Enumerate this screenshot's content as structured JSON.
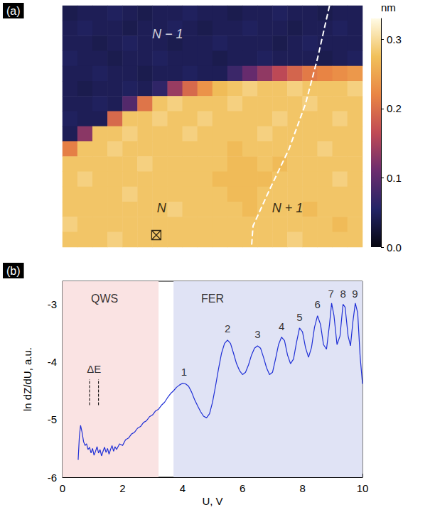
{
  "chart_data": [
    {
      "type": "heatmap",
      "panel_label": "(a)",
      "tick_labels": false,
      "cells": [
        [
          0.04,
          0.045,
          0.045,
          0.05,
          0.045,
          0.04,
          0.045,
          0.045,
          0.05,
          0.045,
          0.045,
          0.04,
          0.045,
          0.045,
          0.05,
          0.045,
          0.045,
          0.04,
          0.045,
          0.045
        ],
        [
          0.045,
          0.05,
          0.045,
          0.045,
          0.04,
          0.045,
          0.045,
          0.05,
          0.045,
          0.04,
          0.045,
          0.045,
          0.05,
          0.045,
          0.045,
          0.04,
          0.045,
          0.045,
          0.05,
          0.045
        ],
        [
          0.045,
          0.045,
          0.04,
          0.045,
          0.05,
          0.045,
          0.045,
          0.04,
          0.045,
          0.045,
          0.05,
          0.045,
          0.045,
          0.045,
          0.04,
          0.045,
          0.05,
          0.045,
          0.045,
          0.045
        ],
        [
          0.05,
          0.045,
          0.045,
          0.04,
          0.045,
          0.045,
          0.05,
          0.045,
          0.045,
          0.045,
          0.04,
          0.045,
          0.045,
          0.05,
          0.045,
          0.045,
          0.045,
          0.04,
          0.045,
          0.05
        ],
        [
          0.045,
          0.045,
          0.05,
          0.045,
          0.045,
          0.04,
          0.045,
          0.045,
          0.05,
          0.045,
          0.045,
          0.073,
          0.106,
          0.134,
          0.163,
          0.19,
          0.21,
          0.219,
          0.228,
          0.238
        ],
        [
          0.045,
          0.04,
          0.045,
          0.045,
          0.05,
          0.045,
          0.064,
          0.139,
          0.195,
          0.233,
          0.271,
          0.28,
          0.29,
          0.28,
          0.28,
          0.29,
          0.28,
          0.28,
          0.28,
          0.29
        ],
        [
          0.045,
          0.045,
          0.05,
          0.045,
          0.092,
          0.205,
          0.28,
          0.29,
          0.28,
          0.28,
          0.28,
          0.29,
          0.28,
          0.28,
          0.28,
          0.28,
          0.29,
          0.28,
          0.28,
          0.28
        ],
        [
          0.05,
          0.045,
          0.045,
          0.195,
          0.28,
          0.28,
          0.29,
          0.28,
          0.28,
          0.29,
          0.28,
          0.28,
          0.28,
          0.28,
          0.29,
          0.28,
          0.28,
          0.28,
          0.29,
          0.28
        ],
        [
          0.045,
          0.13,
          0.28,
          0.28,
          0.29,
          0.28,
          0.28,
          0.28,
          0.29,
          0.28,
          0.28,
          0.28,
          0.28,
          0.29,
          0.28,
          0.28,
          0.28,
          0.28,
          0.28,
          0.28
        ],
        [
          0.214,
          0.28,
          0.28,
          0.29,
          0.28,
          0.28,
          0.28,
          0.28,
          0.28,
          0.28,
          0.28,
          0.27,
          0.28,
          0.28,
          0.28,
          0.28,
          0.28,
          0.29,
          0.28,
          0.28
        ],
        [
          0.28,
          0.28,
          0.28,
          0.28,
          0.28,
          0.29,
          0.28,
          0.28,
          0.28,
          0.28,
          0.28,
          0.27,
          0.27,
          0.28,
          0.27,
          0.28,
          0.28,
          0.28,
          0.28,
          0.28
        ],
        [
          0.28,
          0.29,
          0.28,
          0.28,
          0.28,
          0.28,
          0.28,
          0.28,
          0.28,
          0.28,
          0.27,
          0.27,
          0.27,
          0.27,
          0.28,
          0.28,
          0.28,
          0.28,
          0.29,
          0.28
        ],
        [
          0.28,
          0.28,
          0.28,
          0.28,
          0.29,
          0.28,
          0.28,
          0.28,
          0.28,
          0.28,
          0.28,
          0.27,
          0.27,
          0.28,
          0.28,
          0.28,
          0.28,
          0.28,
          0.28,
          0.28
        ],
        [
          0.28,
          0.28,
          0.28,
          0.28,
          0.28,
          0.28,
          0.28,
          0.29,
          0.28,
          0.28,
          0.28,
          0.28,
          0.27,
          0.28,
          0.28,
          0.28,
          0.27,
          0.28,
          0.28,
          0.28
        ],
        [
          0.29,
          0.28,
          0.28,
          0.28,
          0.28,
          0.28,
          0.28,
          0.28,
          0.28,
          0.28,
          0.28,
          0.28,
          0.28,
          0.28,
          0.28,
          0.28,
          0.28,
          0.28,
          0.27,
          0.28
        ],
        [
          0.28,
          0.28,
          0.28,
          0.29,
          0.28,
          0.28,
          0.28,
          0.28,
          0.28,
          0.28,
          0.28,
          0.28,
          0.28,
          0.28,
          0.28,
          0.29,
          0.28,
          0.28,
          0.28,
          0.28
        ]
      ],
      "colorbar": {
        "range": [
          0,
          0.33
        ],
        "ticks": [
          {
            "value": 0,
            "label": "0.0"
          },
          0.1,
          0.2,
          0.3
        ],
        "label": "nm"
      },
      "annotations": [
        {
          "text": "N − 1",
          "x": 7.0,
          "y": 1.9,
          "color": "#ffffff"
        },
        {
          "text": "N",
          "x": 6.6,
          "y": 13.4,
          "color": "#000000"
        },
        {
          "text": "N + 1",
          "x": 15.0,
          "y": 13.4,
          "color": "#000000"
        }
      ],
      "tip_position": [
        6.25,
        15.2
      ],
      "dashed_line": {
        "x": [
          17.8,
          17.0,
          16.2,
          15.1,
          13.8,
          12.7,
          12.6
        ],
        "y": [
          0,
          3.5,
          6.5,
          9.5,
          12.2,
          14.6,
          16
        ],
        "color": "#ffffff"
      }
    },
    {
      "type": "line",
      "panel_label": "(b)",
      "x_label": "U, V",
      "y_label": "ln dZ/dU, a.u.",
      "xlim": [
        0,
        10
      ],
      "ylim": [
        -6,
        -2.6
      ],
      "xticks": [
        0,
        2,
        4,
        6,
        8,
        10
      ],
      "yticks": [
        -6,
        -5,
        -4,
        -3
      ],
      "color": "#1f2fd6",
      "x": [
        0.52,
        0.56,
        0.6,
        0.65,
        0.7,
        0.75,
        0.8,
        0.85,
        0.9,
        0.95,
        1.0,
        1.05,
        1.1,
        1.15,
        1.2,
        1.25,
        1.3,
        1.35,
        1.4,
        1.45,
        1.5,
        1.55,
        1.6,
        1.65,
        1.7,
        1.75,
        1.8,
        1.9,
        2.0,
        2.1,
        2.2,
        2.3,
        2.4,
        2.5,
        2.6,
        2.7,
        2.8,
        2.9,
        3.0,
        3.1,
        3.2,
        3.3,
        3.4,
        3.5,
        3.6,
        3.7,
        3.8,
        3.9,
        4.0,
        4.1,
        4.2,
        4.3,
        4.4,
        4.5,
        4.6,
        4.7,
        4.8,
        4.9,
        5.0,
        5.1,
        5.2,
        5.3,
        5.4,
        5.5,
        5.6,
        5.7,
        5.8,
        5.9,
        6.0,
        6.1,
        6.2,
        6.3,
        6.4,
        6.5,
        6.6,
        6.7,
        6.8,
        6.9,
        7.0,
        7.1,
        7.2,
        7.3,
        7.4,
        7.5,
        7.6,
        7.7,
        7.8,
        7.9,
        8.0,
        8.1,
        8.2,
        8.3,
        8.4,
        8.5,
        8.6,
        8.7,
        8.8,
        8.9,
        8.97,
        9.05,
        9.15,
        9.25,
        9.35,
        9.42,
        9.52,
        9.6,
        9.68,
        9.76,
        9.84,
        9.92,
        10.0
      ],
      "values": [
        -5.7,
        -5.3,
        -5.1,
        -5.22,
        -5.38,
        -5.45,
        -5.42,
        -5.52,
        -5.48,
        -5.58,
        -5.5,
        -5.62,
        -5.55,
        -5.47,
        -5.58,
        -5.52,
        -5.63,
        -5.55,
        -5.48,
        -5.57,
        -5.5,
        -5.6,
        -5.52,
        -5.45,
        -5.55,
        -5.47,
        -5.52,
        -5.42,
        -5.45,
        -5.35,
        -5.32,
        -5.25,
        -5.22,
        -5.15,
        -5.12,
        -5.05,
        -5.02,
        -4.95,
        -4.92,
        -4.85,
        -4.82,
        -4.75,
        -4.7,
        -4.62,
        -4.55,
        -4.5,
        -4.44,
        -4.4,
        -4.37,
        -4.38,
        -4.42,
        -4.52,
        -4.65,
        -4.76,
        -4.86,
        -4.94,
        -4.97,
        -4.9,
        -4.7,
        -4.42,
        -4.12,
        -3.85,
        -3.68,
        -3.62,
        -3.68,
        -3.85,
        -4.03,
        -4.15,
        -4.22,
        -4.18,
        -4.05,
        -3.88,
        -3.76,
        -3.72,
        -3.76,
        -3.92,
        -4.1,
        -4.22,
        -4.18,
        -3.95,
        -3.7,
        -3.57,
        -3.63,
        -3.88,
        -4.03,
        -3.95,
        -3.66,
        -3.41,
        -3.48,
        -3.75,
        -3.92,
        -3.75,
        -3.4,
        -3.2,
        -3.35,
        -3.7,
        -3.78,
        -3.35,
        -2.98,
        -3.2,
        -3.7,
        -3.55,
        -3.0,
        -3.05,
        -3.55,
        -3.72,
        -3.3,
        -2.98,
        -3.15,
        -3.9,
        -4.38
      ],
      "regions": [
        {
          "label": "QWS",
          "x": [
            0,
            3.2
          ],
          "color": "#fae3e3",
          "label_position": [
            1.4,
            -2.9
          ]
        },
        {
          "label": "FER",
          "x": [
            3.7,
            10
          ],
          "color": "#e0e3f5",
          "label_position": [
            5.0,
            -2.9
          ]
        }
      ],
      "peaks": {
        "labels": [
          "1",
          "2",
          "3",
          "4",
          "5",
          "6",
          "7",
          "8",
          "9"
        ],
        "x": [
          4.05,
          5.5,
          6.5,
          7.3,
          7.9,
          8.5,
          8.95,
          9.35,
          9.75
        ],
        "y": [
          -4.17,
          -3.42,
          -3.52,
          -3.38,
          -3.22,
          -3.0,
          -2.82,
          -2.82,
          -2.82
        ]
      },
      "delta_e": {
        "label": "ΔE",
        "x": [
          0.9,
          1.2
        ],
        "y_range": [
          -4.75,
          -4.3
        ],
        "label_position": [
          1.05,
          -4.12
        ]
      }
    }
  ]
}
